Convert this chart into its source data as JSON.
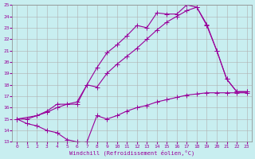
{
  "xlabel": "Windchill (Refroidissement éolien,°C)",
  "background_color": "#c8eef0",
  "line_color": "#990099",
  "grid_color": "#b0b0b0",
  "xlim": [
    -0.5,
    23.5
  ],
  "ylim": [
    13,
    25
  ],
  "xticks": [
    0,
    1,
    2,
    3,
    4,
    5,
    6,
    7,
    8,
    9,
    10,
    11,
    12,
    13,
    14,
    15,
    16,
    17,
    18,
    19,
    20,
    21,
    22,
    23
  ],
  "yticks": [
    13,
    14,
    15,
    16,
    17,
    18,
    19,
    20,
    21,
    22,
    23,
    24,
    25
  ],
  "line1_x": [
    0,
    1,
    2,
    3,
    4,
    5,
    6,
    7,
    8,
    9,
    10,
    11,
    12,
    13,
    14,
    15,
    16,
    17,
    18,
    19,
    20,
    21,
    22,
    23
  ],
  "line1_y": [
    15,
    14.6,
    14.4,
    14.0,
    13.8,
    13.2,
    13.0,
    13.0,
    15.3,
    15.0,
    15.3,
    15.7,
    16.0,
    16.2,
    16.5,
    16.7,
    16.9,
    17.1,
    17.2,
    17.3,
    17.3,
    17.3,
    17.3,
    17.3
  ],
  "line2_x": [
    0,
    1,
    2,
    3,
    4,
    5,
    6,
    7,
    8,
    9,
    10,
    11,
    12,
    13,
    14,
    15,
    16,
    17,
    18,
    19,
    20,
    21,
    22,
    23
  ],
  "line2_y": [
    15,
    15,
    15.3,
    15.7,
    16.3,
    16.3,
    16.5,
    18.0,
    19.5,
    20.8,
    21.5,
    22.3,
    23.2,
    23.0,
    24.3,
    24.2,
    24.2,
    25.0,
    24.8,
    23.3,
    21.0,
    18.5,
    17.4,
    17.4
  ],
  "line3_x": [
    0,
    2,
    3,
    4,
    5,
    6,
    7,
    8,
    9,
    10,
    11,
    12,
    13,
    14,
    15,
    16,
    17,
    18,
    19,
    20,
    21,
    22,
    23
  ],
  "line3_y": [
    15,
    15.3,
    15.6,
    16.0,
    16.3,
    16.3,
    18.0,
    17.8,
    19.0,
    19.8,
    20.5,
    21.2,
    22.0,
    22.8,
    23.5,
    24.0,
    24.5,
    24.8,
    23.2,
    21.0,
    18.5,
    17.4,
    17.4
  ]
}
